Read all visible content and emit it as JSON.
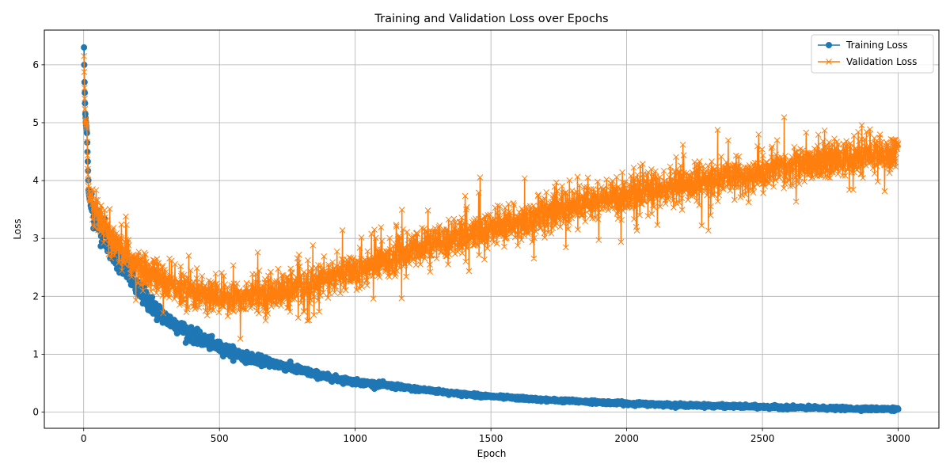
{
  "chart_data": {
    "type": "line",
    "title": "Training and Validation Loss over Epochs",
    "xlabel": "Epoch",
    "ylabel": "Loss",
    "xlim": [
      -145,
      3150
    ],
    "ylim": [
      -0.28,
      6.6
    ],
    "xticks": [
      0,
      500,
      1000,
      1500,
      2000,
      2500,
      3000
    ],
    "yticks": [
      0,
      1,
      2,
      3,
      4,
      5,
      6
    ],
    "grid": true,
    "legend_position": "top-right",
    "x_range": [
      1,
      3000
    ],
    "series": [
      {
        "name": "Training Loss",
        "color": "#1f77b4",
        "marker": "circle",
        "keypoints": [
          [
            1,
            6.3
          ],
          [
            3,
            5.7
          ],
          [
            6,
            5.15
          ],
          [
            9,
            4.95
          ],
          [
            12,
            4.82
          ],
          [
            15,
            4.33
          ],
          [
            18,
            3.84
          ],
          [
            22,
            3.68
          ],
          [
            30,
            3.55
          ],
          [
            40,
            3.42
          ],
          [
            60,
            3.25
          ],
          [
            80,
            3.05
          ],
          [
            100,
            2.88
          ],
          [
            130,
            2.65
          ],
          [
            160,
            2.45
          ],
          [
            200,
            2.12
          ],
          [
            250,
            1.85
          ],
          [
            300,
            1.62
          ],
          [
            350,
            1.48
          ],
          [
            400,
            1.33
          ],
          [
            450,
            1.22
          ],
          [
            500,
            1.12
          ],
          [
            600,
            0.95
          ],
          [
            700,
            0.84
          ],
          [
            800,
            0.72
          ],
          [
            900,
            0.6
          ],
          [
            1000,
            0.52
          ],
          [
            1100,
            0.47
          ],
          [
            1200,
            0.41
          ],
          [
            1300,
            0.36
          ],
          [
            1400,
            0.31
          ],
          [
            1500,
            0.27
          ],
          [
            1600,
            0.24
          ],
          [
            1700,
            0.21
          ],
          [
            1800,
            0.19
          ],
          [
            1900,
            0.17
          ],
          [
            2000,
            0.15
          ],
          [
            2200,
            0.12
          ],
          [
            2400,
            0.1
          ],
          [
            2600,
            0.08
          ],
          [
            2800,
            0.06
          ],
          [
            3000,
            0.05
          ]
        ],
        "noise": 0.05
      },
      {
        "name": "Validation Loss",
        "color": "#ff7f0e",
        "marker": "x",
        "keypoints": [
          [
            1,
            6.15
          ],
          [
            3,
            5.6
          ],
          [
            6,
            5.05
          ],
          [
            9,
            4.98
          ],
          [
            12,
            4.9
          ],
          [
            15,
            4.2
          ],
          [
            18,
            3.9
          ],
          [
            22,
            3.7
          ],
          [
            30,
            3.6
          ],
          [
            40,
            3.45
          ],
          [
            60,
            3.3
          ],
          [
            80,
            3.15
          ],
          [
            100,
            2.95
          ],
          [
            130,
            2.8
          ],
          [
            160,
            2.7
          ],
          [
            200,
            2.5
          ],
          [
            250,
            2.38
          ],
          [
            300,
            2.25
          ],
          [
            350,
            2.15
          ],
          [
            400,
            2.08
          ],
          [
            450,
            2.02
          ],
          [
            500,
            2.0
          ],
          [
            550,
            1.98
          ],
          [
            600,
            2.0
          ],
          [
            700,
            2.05
          ],
          [
            800,
            2.15
          ],
          [
            900,
            2.3
          ],
          [
            1000,
            2.45
          ],
          [
            1100,
            2.6
          ],
          [
            1200,
            2.78
          ],
          [
            1300,
            2.92
          ],
          [
            1400,
            3.05
          ],
          [
            1500,
            3.15
          ],
          [
            1600,
            3.28
          ],
          [
            1700,
            3.45
          ],
          [
            1800,
            3.55
          ],
          [
            1900,
            3.65
          ],
          [
            2000,
            3.75
          ],
          [
            2100,
            3.85
          ],
          [
            2200,
            3.92
          ],
          [
            2300,
            4.0
          ],
          [
            2400,
            4.07
          ],
          [
            2500,
            4.15
          ],
          [
            2600,
            4.22
          ],
          [
            2700,
            4.3
          ],
          [
            2800,
            4.38
          ],
          [
            2900,
            4.45
          ],
          [
            3000,
            4.45
          ]
        ],
        "noise": 0.15
      }
    ]
  }
}
